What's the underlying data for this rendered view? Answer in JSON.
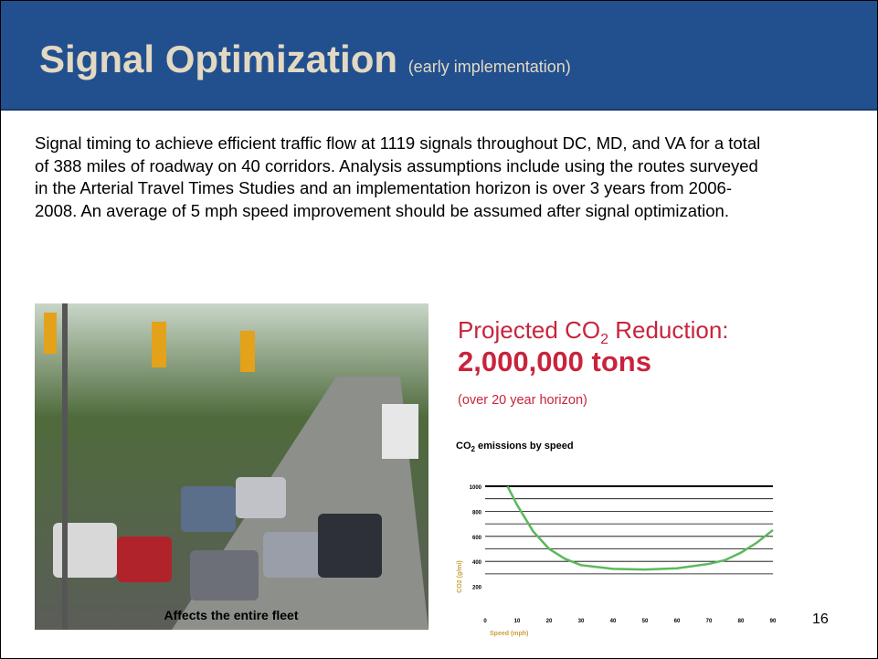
{
  "header": {
    "title": "Signal Optimization",
    "subtitle": "(early implementation)"
  },
  "body": "Signal timing to achieve efficient traffic flow at 1119 signals throughout DC, MD, and VA for a total of 388 miles of roadway on 40 corridors.  Analysis assumptions include using the routes surveyed in the Arterial Travel Times Studies and an implementation horizon is over 3 years from 2006-2008. An average of 5 mph speed improvement should be assumed after signal optimization.",
  "photo_caption": "Affects the entire fleet",
  "reduction": {
    "label": "Projected CO",
    "label_sub": "2",
    "label_end": " Reduction:",
    "amount": "2,000,000 tons",
    "note": "(over 20 year horizon)"
  },
  "chart": {
    "type": "line",
    "title": "CO",
    "title_sub": "2",
    "title_end": " emissions by speed",
    "x_label": "Speed (mph)",
    "y_label": "CO2 (g/mi)",
    "x": [
      7,
      10,
      15,
      20,
      25,
      30,
      40,
      50,
      60,
      70,
      75,
      80,
      85,
      90
    ],
    "values": [
      1000,
      850,
      640,
      500,
      420,
      370,
      340,
      335,
      345,
      380,
      410,
      470,
      550,
      650
    ],
    "color": "#5cb85c",
    "xlim": [
      0,
      90
    ],
    "ylim": [
      0,
      1000
    ],
    "xticks": [
      0,
      10,
      20,
      30,
      40,
      50,
      60,
      70,
      80,
      90
    ],
    "yticks": [
      200,
      400,
      600,
      800,
      1000
    ],
    "ygrid": [
      300,
      400,
      500,
      600,
      700,
      800,
      900,
      1000
    ]
  },
  "page_number": "16"
}
